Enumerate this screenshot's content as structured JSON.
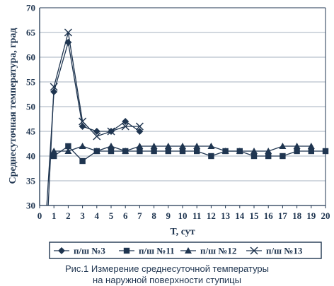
{
  "chart_data": {
    "type": "line",
    "xlabel": "T, сут",
    "ylabel": "Среднесуточная температура, град",
    "xlim": [
      0,
      20
    ],
    "ylim": [
      30,
      70
    ],
    "xticks": [
      "0",
      "1",
      "2",
      "3",
      "4",
      "5",
      "6",
      "7",
      "8",
      "9",
      "10",
      "11",
      "12",
      "13",
      "14",
      "15",
      "16",
      "17",
      "18",
      "19",
      "20"
    ],
    "yticks": [
      "30",
      "35",
      "40",
      "45",
      "50",
      "55",
      "60",
      "65",
      "70"
    ],
    "grid": "horizontal",
    "legend_position": "bottom",
    "series": [
      {
        "name": "п/ш №3",
        "marker": "diamond",
        "x": [
          0.5,
          1,
          2,
          3,
          4,
          5,
          6,
          7
        ],
        "y": [
          30,
          53,
          63,
          46,
          45,
          45,
          47,
          45
        ]
      },
      {
        "name": "п/ш №11",
        "marker": "square",
        "x": [
          1,
          2,
          3,
          4,
          5,
          6,
          7,
          8,
          9,
          10,
          11,
          12,
          13,
          14,
          15,
          16,
          17,
          18,
          19,
          20
        ],
        "y": [
          40,
          42,
          39,
          41,
          41,
          41,
          41,
          41,
          41,
          41,
          41,
          40,
          41,
          41,
          40,
          40,
          40,
          41,
          41,
          41
        ]
      },
      {
        "name": "п/ш №12",
        "marker": "triangle",
        "x": [
          1,
          2,
          3,
          4,
          5,
          6,
          7,
          8,
          9,
          10,
          11,
          12,
          13,
          14,
          15,
          16,
          17,
          18,
          19
        ],
        "y": [
          41,
          41,
          42,
          41,
          42,
          41,
          42,
          42,
          42,
          42,
          42,
          42,
          41,
          41,
          41,
          41,
          42,
          42,
          42
        ]
      },
      {
        "name": "п/ш №13",
        "marker": "x",
        "x": [
          0.6,
          1,
          2,
          3,
          4,
          5,
          6,
          7
        ],
        "y": [
          30,
          54,
          65,
          47,
          44,
          45,
          46,
          46
        ]
      }
    ]
  },
  "caption": {
    "line1": "Рис.1 Измерение среднесуточной температуры",
    "line2": "на наружной поверхности ступицы"
  },
  "colors": {
    "ink": "#1f3550",
    "grid": "#8899aa"
  }
}
